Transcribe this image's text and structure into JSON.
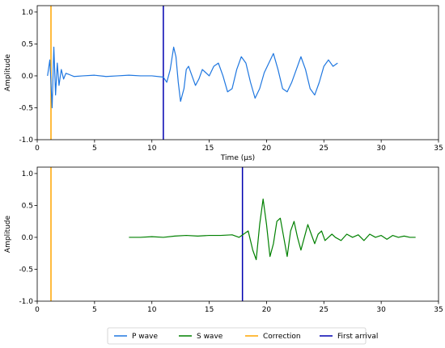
{
  "chart_data": [
    {
      "type": "line",
      "xlabel": "Time (µs)",
      "ylabel": "Amplitude",
      "xlim": [
        0,
        35
      ],
      "ylim": [
        -1.0,
        1.1
      ],
      "xticks": [
        0,
        5,
        10,
        15,
        20,
        25,
        30,
        35
      ],
      "yticks": [
        -1.0,
        -0.5,
        0.0,
        0.5,
        1.0
      ],
      "series": [
        {
          "name": "P wave",
          "color": "#1f77e0",
          "x": [
            0.9,
            1.1,
            1.3,
            1.45,
            1.6,
            1.75,
            1.9,
            2.1,
            2.3,
            2.5,
            2.8,
            3.2,
            4,
            5,
            6,
            7,
            8,
            9,
            10,
            11,
            11.3,
            11.6,
            11.9,
            12.1,
            12.3,
            12.5,
            12.8,
            13.0,
            13.2,
            13.5,
            13.8,
            14.1,
            14.4,
            14.7,
            15.0,
            15.4,
            15.8,
            16.2,
            16.6,
            17.0,
            17.4,
            17.8,
            18.2,
            18.6,
            19.0,
            19.4,
            19.8,
            20.2,
            20.6,
            21.0,
            21.4,
            21.8,
            22.2,
            22.6,
            23.0,
            23.4,
            23.8,
            24.2,
            24.6,
            25.0,
            25.4,
            25.8,
            26.2
          ],
          "y": [
            0.0,
            0.25,
            -0.5,
            0.45,
            -0.3,
            0.2,
            -0.15,
            0.1,
            -0.05,
            0.04,
            0.02,
            -0.01,
            0.0,
            0.01,
            -0.01,
            0.0,
            0.01,
            0.0,
            0.0,
            -0.02,
            -0.1,
            0.1,
            0.45,
            0.3,
            -0.1,
            -0.4,
            -0.2,
            0.1,
            0.15,
            0.0,
            -0.15,
            -0.05,
            0.1,
            0.05,
            0.0,
            0.15,
            0.2,
            0.0,
            -0.25,
            -0.2,
            0.1,
            0.3,
            0.2,
            -0.1,
            -0.35,
            -0.2,
            0.05,
            0.2,
            0.35,
            0.1,
            -0.2,
            -0.25,
            -0.1,
            0.1,
            0.3,
            0.1,
            -0.2,
            -0.3,
            -0.1,
            0.15,
            0.25,
            0.15,
            0.2
          ]
        }
      ],
      "vlines": [
        {
          "name": "Correction",
          "x": 1.2,
          "color": "#ffa500"
        },
        {
          "name": "First arrival",
          "x": 11.0,
          "color": "#0000b0"
        }
      ]
    },
    {
      "type": "line",
      "xlabel": "",
      "ylabel": "Amplitude",
      "xlim": [
        0,
        35
      ],
      "ylim": [
        -1.0,
        1.1
      ],
      "xticks": [
        0,
        5,
        10,
        15,
        20,
        25,
        30,
        35
      ],
      "yticks": [
        -1.0,
        -0.5,
        0.0,
        0.5,
        1.0
      ],
      "series": [
        {
          "name": "S wave",
          "color": "#008000",
          "x": [
            8,
            9,
            10,
            11,
            12,
            13,
            14,
            15,
            16,
            17,
            17.6,
            18,
            18.4,
            18.8,
            19.1,
            19.4,
            19.7,
            20.0,
            20.3,
            20.6,
            20.9,
            21.2,
            21.5,
            21.8,
            22.1,
            22.4,
            22.7,
            23.0,
            23.3,
            23.6,
            23.9,
            24.2,
            24.5,
            24.8,
            25.1,
            25.4,
            25.7,
            26.0,
            26.5,
            27,
            27.5,
            28,
            28.5,
            29,
            29.5,
            30,
            30.5,
            31,
            31.5,
            32,
            32.5,
            33
          ],
          "y": [
            0.0,
            0.0,
            0.01,
            0.0,
            0.02,
            0.03,
            0.02,
            0.03,
            0.03,
            0.04,
            0.0,
            0.05,
            0.1,
            -0.2,
            -0.35,
            0.2,
            0.6,
            0.2,
            -0.3,
            -0.1,
            0.25,
            0.3,
            0.0,
            -0.3,
            0.1,
            0.25,
            0.0,
            -0.2,
            0.0,
            0.2,
            0.05,
            -0.1,
            0.05,
            0.1,
            -0.05,
            0.0,
            0.05,
            0.0,
            -0.05,
            0.05,
            0.0,
            0.04,
            -0.05,
            0.05,
            0.0,
            0.03,
            -0.03,
            0.03,
            0.0,
            0.02,
            0.0,
            0.0
          ]
        }
      ],
      "vlines": [
        {
          "name": "Correction",
          "x": 1.2,
          "color": "#ffa500"
        },
        {
          "name": "First arrival",
          "x": 17.9,
          "color": "#0000b0"
        }
      ]
    }
  ],
  "legend": {
    "placement": "bottom-center",
    "entries": [
      {
        "label": "P wave",
        "color": "#1f77e0"
      },
      {
        "label": "S wave",
        "color": "#008000"
      },
      {
        "label": "Correction",
        "color": "#ffa500"
      },
      {
        "label": "First arrival",
        "color": "#0000b0"
      }
    ]
  }
}
